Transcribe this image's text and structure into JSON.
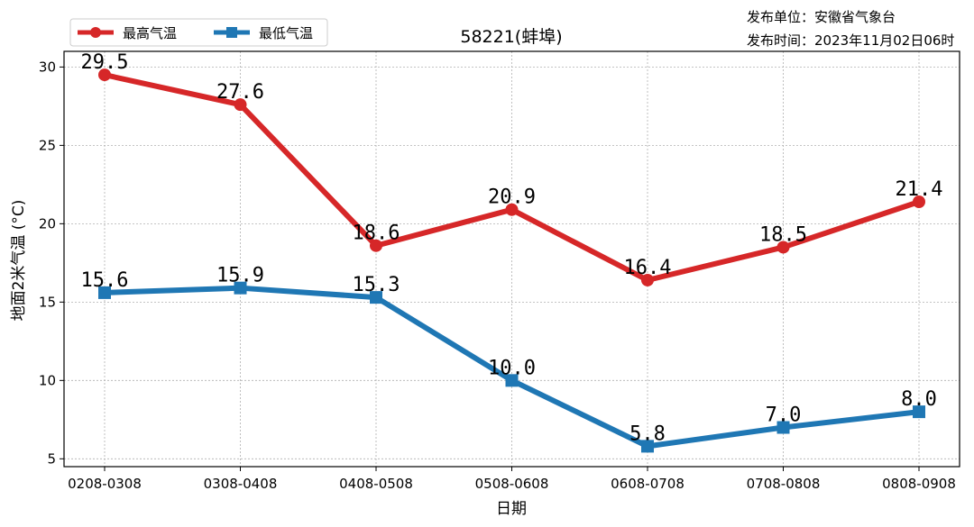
{
  "chart_data": {
    "type": "line",
    "title": "58221(蚌埠)",
    "xlabel": "日期",
    "ylabel": "地面2米气温 (°C)",
    "categories": [
      "0208-0308",
      "0308-0408",
      "0408-0508",
      "0508-0608",
      "0608-0708",
      "0708-0808",
      "0808-0908"
    ],
    "series": [
      {
        "name": "最高气温",
        "values": [
          29.5,
          27.6,
          18.6,
          20.9,
          16.4,
          18.5,
          21.4
        ],
        "labels": [
          "29.5",
          "27.6",
          "18.6",
          "20.9",
          "16.4",
          "18.5",
          "21.4"
        ],
        "color": "#d62728",
        "marker": "circle"
      },
      {
        "name": "最低气温",
        "values": [
          15.6,
          15.9,
          15.3,
          10.0,
          5.8,
          7.0,
          8.0
        ],
        "labels": [
          "15.6",
          "15.9",
          "15.3",
          "10.0",
          "5.8",
          "7.0",
          "8.0"
        ],
        "color": "#1f77b4",
        "marker": "square"
      }
    ],
    "ylim": [
      4.5,
      31
    ],
    "yticks": [
      5,
      10,
      15,
      20,
      25,
      30
    ],
    "grid": true,
    "legend_position": "top-left"
  },
  "info": {
    "publisher": "发布单位：安徽省气象台",
    "publish_time": "发布时间：2023年11月02日06时"
  }
}
